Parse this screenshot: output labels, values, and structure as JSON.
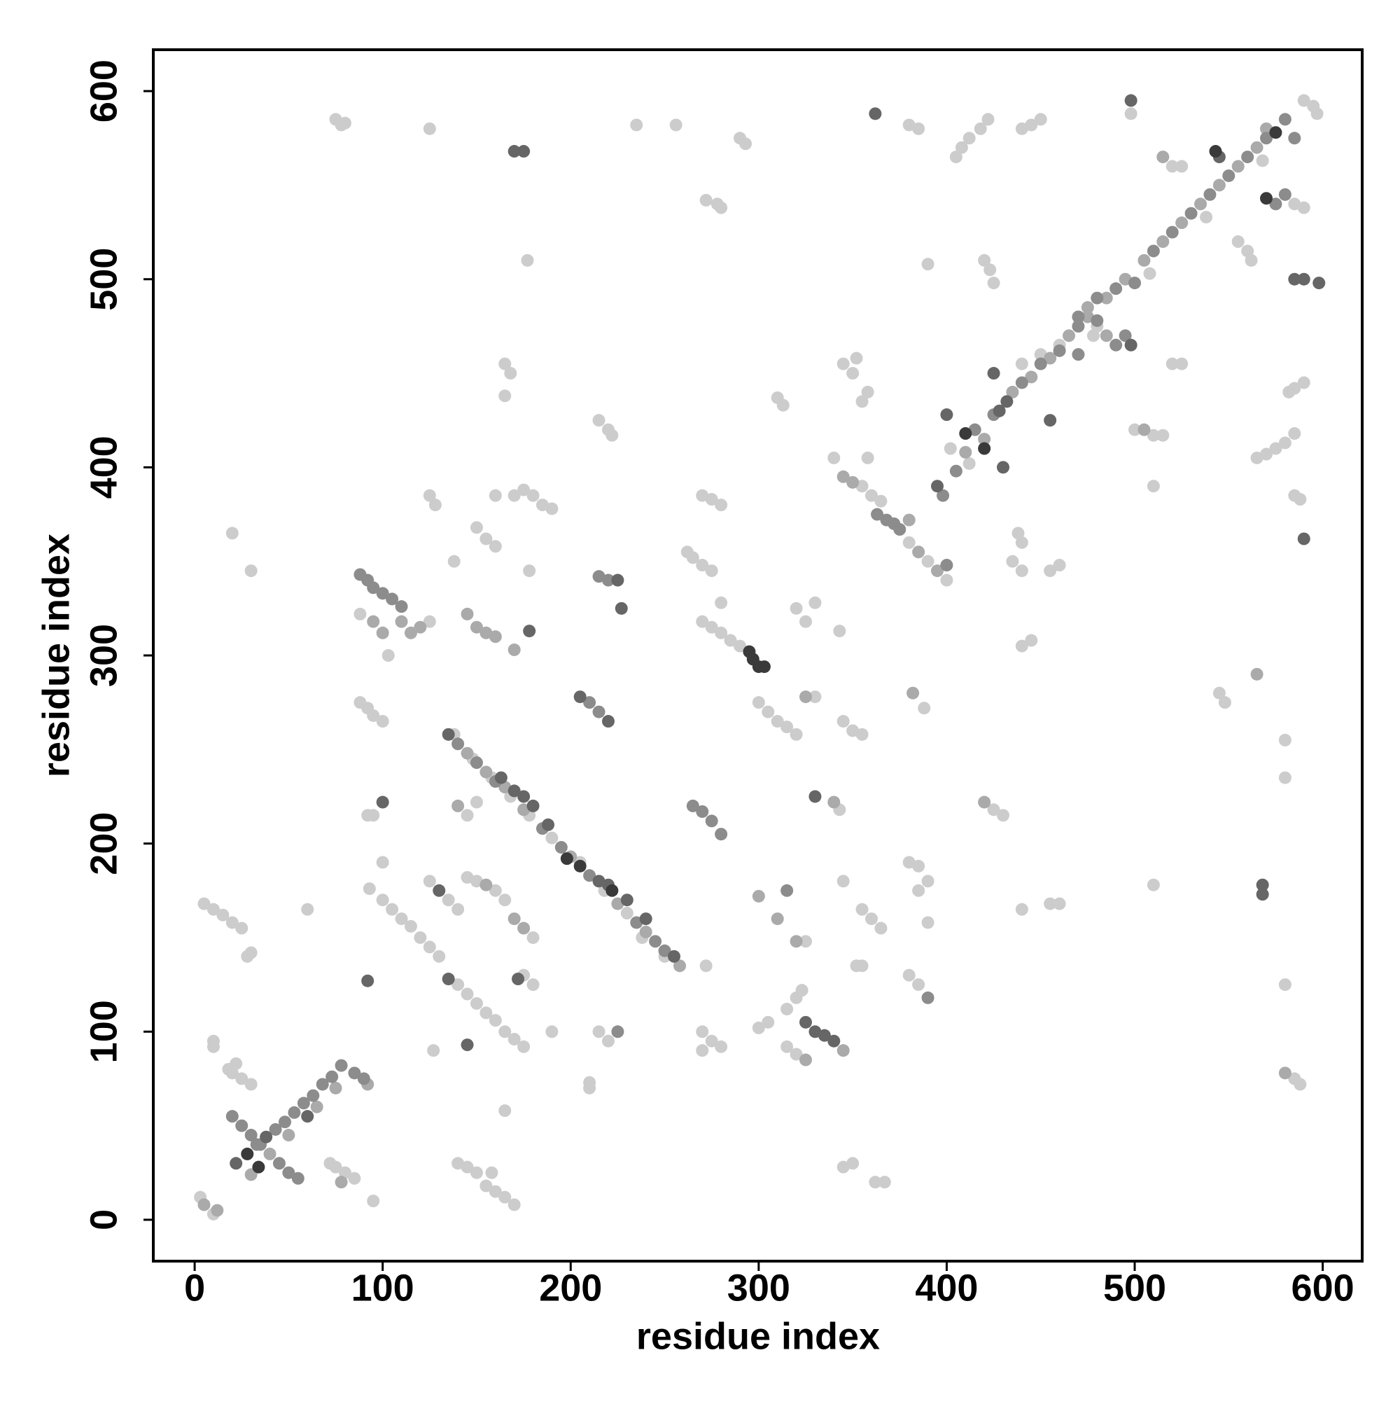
{
  "chart_data": {
    "type": "scatter",
    "x_label": "residue index",
    "y_label": "residue index",
    "xlim": [
      -22,
      621
    ],
    "ylim": [
      -22,
      622
    ],
    "xticks": [
      0,
      100,
      200,
      300,
      400,
      500,
      600
    ],
    "yticks": [
      0,
      100,
      200,
      300,
      400,
      500,
      600
    ],
    "grid": false,
    "series": [
      {
        "color": "#cccccc",
        "x": [
          3,
          10,
          20,
          25,
          30,
          18,
          22,
          10,
          10,
          75,
          80,
          85,
          72,
          95,
          60,
          20,
          30,
          5,
          10,
          15,
          20,
          25,
          28,
          30,
          88,
          125,
          103,
          88,
          92,
          95,
          100,
          92,
          95,
          100,
          93,
          100,
          105,
          110,
          115,
          120,
          125,
          130,
          140,
          145,
          150,
          155,
          160,
          165,
          170,
          175,
          125,
          135,
          140,
          145,
          150,
          160,
          165,
          180,
          175,
          180,
          138,
          148,
          158,
          168,
          178,
          190,
          205,
          218,
          230,
          250,
          238,
          145,
          150,
          125,
          128,
          170,
          175,
          180,
          185,
          190,
          138,
          150,
          155,
          160,
          160,
          165,
          168,
          165,
          177,
          178,
          125,
          75,
          78,
          80,
          235,
          256,
          290,
          293,
          272,
          278,
          280,
          215,
          220,
          222,
          265,
          270,
          275,
          262,
          270,
          275,
          280,
          285,
          290,
          280,
          270,
          275,
          280,
          300,
          305,
          310,
          315,
          320,
          330,
          310,
          313,
          320,
          325,
          330,
          343,
          343,
          345,
          350,
          355,
          352,
          345,
          325,
          320,
          315,
          323,
          315,
          320,
          300,
          305,
          270,
          275,
          280,
          270,
          272,
          215,
          220,
          210,
          210,
          190,
          165,
          140,
          145,
          150,
          155,
          160,
          165,
          170,
          158,
          127,
          345,
          350,
          362,
          367,
          355,
          360,
          365,
          380,
          385,
          390,
          385,
          390,
          380,
          385,
          340,
          355,
          360,
          365,
          358,
          380,
          390,
          400,
          350,
          352,
          345,
          355,
          358,
          380,
          385,
          405,
          408,
          412,
          418,
          422,
          440,
          445,
          450,
          420,
          423,
          425,
          390,
          435,
          440,
          438,
          440,
          455,
          460,
          445,
          440,
          402,
          440,
          450,
          460,
          480,
          498,
          500,
          510,
          515,
          510,
          510,
          520,
          525,
          520,
          525,
          545,
          548,
          555,
          560,
          562,
          565,
          570,
          575,
          580,
          585,
          582,
          585,
          590,
          585,
          588,
          580,
          580,
          580,
          585,
          588,
          590,
          585,
          590,
          595,
          597,
          425,
          430,
          455,
          460,
          440,
          355,
          388,
          412,
          478,
          508,
          538,
          568
        ],
        "y": [
          12,
          3,
          78,
          75,
          72,
          80,
          83,
          95,
          92,
          28,
          25,
          22,
          30,
          10,
          165,
          365,
          345,
          168,
          165,
          162,
          158,
          155,
          140,
          142,
          322,
          318,
          300,
          275,
          272,
          268,
          265,
          215,
          215,
          190,
          176,
          170,
          165,
          160,
          156,
          150,
          145,
          140,
          125,
          120,
          115,
          110,
          106,
          100,
          96,
          92,
          180,
          170,
          165,
          182,
          180,
          175,
          170,
          150,
          130,
          125,
          258,
          245,
          235,
          225,
          215,
          203,
          190,
          175,
          163,
          140,
          150,
          215,
          222,
          385,
          380,
          385,
          388,
          385,
          380,
          378,
          350,
          368,
          362,
          358,
          385,
          455,
          450,
          438,
          510,
          345,
          580,
          585,
          582,
          583,
          582,
          582,
          575,
          572,
          542,
          540,
          538,
          425,
          420,
          417,
          352,
          348,
          345,
          355,
          318,
          315,
          312,
          308,
          305,
          328,
          385,
          383,
          380,
          275,
          270,
          265,
          262,
          258,
          278,
          437,
          433,
          325,
          318,
          328,
          313,
          218,
          265,
          260,
          258,
          135,
          180,
          148,
          118,
          112,
          122,
          92,
          88,
          102,
          105,
          100,
          95,
          92,
          90,
          135,
          100,
          95,
          70,
          73,
          100,
          58,
          30,
          28,
          25,
          18,
          15,
          12,
          8,
          25,
          90,
          28,
          30,
          20,
          20,
          165,
          160,
          155,
          190,
          188,
          180,
          175,
          158,
          130,
          125,
          405,
          390,
          385,
          382,
          405,
          360,
          350,
          340,
          450,
          458,
          455,
          435,
          440,
          582,
          580,
          565,
          570,
          575,
          580,
          585,
          580,
          582,
          585,
          510,
          505,
          498,
          508,
          350,
          345,
          365,
          360,
          345,
          348,
          308,
          305,
          410,
          455,
          460,
          465,
          475,
          588,
          420,
          417,
          417,
          390,
          178,
          560,
          560,
          455,
          455,
          280,
          275,
          520,
          515,
          510,
          405,
          407,
          410,
          413,
          418,
          440,
          442,
          445,
          385,
          383,
          255,
          235,
          125,
          75,
          72,
          538,
          540,
          595,
          592,
          588,
          218,
          215,
          168,
          168,
          165,
          135,
          272,
          402,
          470,
          503,
          533,
          563
        ]
      },
      {
        "color": "#aaaaaa",
        "x": [
          30,
          40,
          50,
          65,
          75,
          78,
          92,
          5,
          12,
          100,
          110,
          115,
          120,
          95,
          145,
          150,
          155,
          160,
          170,
          145,
          155,
          165,
          175,
          200,
          225,
          240,
          258,
          140,
          300,
          310,
          320,
          325,
          345,
          350,
          380,
          385,
          395,
          410,
          420,
          435,
          445,
          455,
          465,
          475,
          485,
          495,
          505,
          515,
          525,
          535,
          545,
          555,
          565,
          485,
          475,
          515,
          565,
          580,
          570,
          382,
          420,
          155,
          170,
          175,
          340,
          345,
          325,
          505
        ],
        "y": [
          24,
          35,
          45,
          60,
          70,
          20,
          72,
          8,
          5,
          312,
          318,
          312,
          315,
          318,
          322,
          315,
          312,
          310,
          303,
          248,
          238,
          230,
          218,
          193,
          168,
          153,
          135,
          220,
          172,
          160,
          148,
          278,
          395,
          392,
          372,
          355,
          345,
          408,
          415,
          440,
          448,
          458,
          470,
          480,
          490,
          500,
          510,
          520,
          530,
          540,
          550,
          560,
          570,
          470,
          485,
          565,
          290,
          78,
          580,
          280,
          222,
          178,
          160,
          155,
          222,
          90,
          85,
          420
        ]
      },
      {
        "color": "#8c8c8c",
        "x": [
          33,
          43,
          48,
          53,
          58,
          63,
          68,
          73,
          78,
          20,
          25,
          30,
          35,
          45,
          50,
          55,
          85,
          90,
          88,
          92,
          95,
          100,
          105,
          110,
          140,
          150,
          160,
          185,
          195,
          210,
          235,
          245,
          250,
          215,
          220,
          210,
          215,
          265,
          270,
          275,
          280,
          363,
          368,
          372,
          375,
          405,
          398,
          400,
          415,
          425,
          440,
          450,
          460,
          470,
          480,
          490,
          500,
          510,
          520,
          530,
          540,
          550,
          560,
          570,
          580,
          470,
          480,
          490,
          495,
          470,
          585,
          580,
          575,
          225,
          390,
          315
        ],
        "y": [
          40,
          48,
          52,
          57,
          62,
          66,
          72,
          76,
          82,
          55,
          50,
          45,
          40,
          30,
          25,
          22,
          78,
          75,
          343,
          340,
          336,
          333,
          330,
          326,
          253,
          243,
          233,
          208,
          198,
          183,
          158,
          148,
          143,
          342,
          340,
          275,
          270,
          220,
          217,
          212,
          205,
          375,
          372,
          370,
          367,
          398,
          385,
          348,
          420,
          428,
          445,
          455,
          462,
          475,
          478,
          495,
          498,
          515,
          525,
          535,
          545,
          555,
          565,
          575,
          585,
          480,
          490,
          465,
          470,
          460,
          575,
          545,
          540,
          100,
          118,
          175
        ]
      },
      {
        "color": "#666666",
        "x": [
          170,
          175,
          568,
          568,
          590,
          498,
          225,
          227,
          330,
          325,
          330,
          335,
          340,
          163,
          170,
          175,
          180,
          188,
          215,
          220,
          230,
          240,
          255,
          135,
          130,
          135,
          172,
          145,
          425,
          432,
          430,
          455,
          585,
          590,
          598,
          498,
          545,
          22,
          38,
          60,
          92,
          100,
          205,
          220,
          178,
          395,
          400,
          362,
          428
        ],
        "y": [
          568,
          568,
          178,
          173,
          362,
          595,
          340,
          325,
          225,
          105,
          100,
          98,
          95,
          235,
          228,
          225,
          220,
          210,
          180,
          178,
          170,
          160,
          140,
          258,
          175,
          128,
          128,
          93,
          450,
          435,
          400,
          425,
          500,
          500,
          498,
          465,
          565,
          30,
          44,
          55,
          127,
          222,
          278,
          265,
          313,
          390,
          428,
          588,
          430
        ]
      },
      {
        "color": "#3a3a3a",
        "x": [
          28,
          34,
          295,
          297,
          300,
          303,
          410,
          420,
          543,
          570,
          575,
          198,
          205,
          222
        ],
        "y": [
          35,
          28,
          302,
          298,
          294,
          294,
          418,
          410,
          568,
          543,
          578,
          192,
          188,
          175
        ]
      }
    ]
  }
}
